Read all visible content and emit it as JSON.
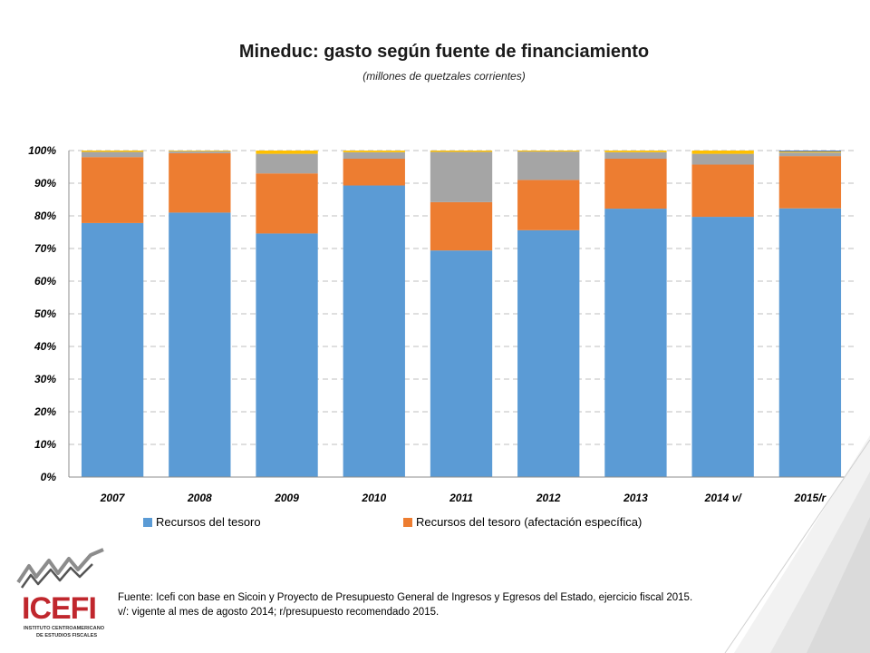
{
  "title": "Mineduc: gasto según fuente de financiamiento",
  "subtitle": "(millones de quetzales corrientes)",
  "chart_data": {
    "type": "bar",
    "stacked": true,
    "percent": true,
    "categories": [
      "2007",
      "2008",
      "2009",
      "2010",
      "2011",
      "2012",
      "2013",
      "2014 v/",
      "2015/r"
    ],
    "series": [
      {
        "name": "Recursos del tesoro",
        "color": "#5b9bd5",
        "values": [
          77.8,
          81.0,
          74.6,
          89.3,
          69.4,
          75.6,
          82.2,
          79.7,
          82.3
        ]
      },
      {
        "name": "Recursos del tesoro (afectación específica)",
        "color": "#ed7d31",
        "values": [
          20.2,
          18.2,
          18.4,
          8.2,
          14.8,
          15.4,
          15.3,
          16.0,
          16.0
        ]
      },
      {
        "color": "#a5a5a5",
        "values": [
          1.6,
          0.6,
          6.0,
          2.0,
          15.4,
          8.7,
          2.0,
          3.3,
          1.1
        ]
      },
      {
        "color": "#ffc000",
        "values": [
          0.4,
          0.2,
          1.0,
          0.5,
          0.4,
          0.3,
          0.5,
          1.0,
          0.3
        ]
      },
      {
        "color": "#4472c4",
        "values": [
          0.0,
          0.0,
          0.0,
          0.0,
          0.0,
          0.0,
          0.0,
          0.0,
          0.3
        ]
      }
    ],
    "yticks": [
      "0%",
      "10%",
      "20%",
      "30%",
      "40%",
      "50%",
      "60%",
      "70%",
      "80%",
      "90%",
      "100%"
    ],
    "ylim": [
      0,
      100
    ],
    "grid": true,
    "legend_position": "bottom"
  },
  "footer": {
    "line1": "Fuente: Icefi con base en Sicoin y Proyecto de Presupuesto General de Ingresos y Egresos del Estado, ejercicio fiscal 2015.",
    "line2": "v/: vigente al mes de agosto 2014;  r/presupuesto recomendado 2015."
  },
  "logo": {
    "name": "ICEFI",
    "tagline_line1": "INSTITUTO CENTROAMERICANO",
    "tagline_line2": "DE ESTUDIOS FISCALES",
    "color": "#c0272d"
  }
}
